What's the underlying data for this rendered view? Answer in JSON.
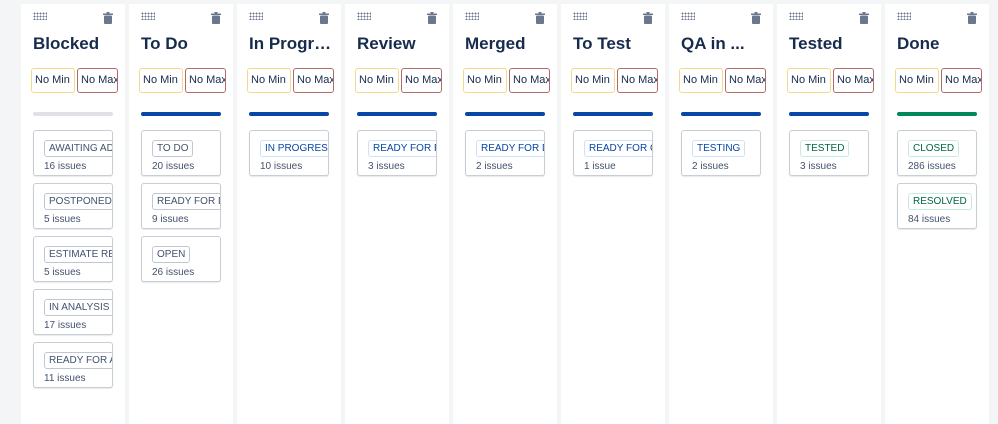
{
  "colors": {
    "gray_bar": "#dfe1e6",
    "blue_bar": "#0747a6",
    "green_bar": "#00875a"
  },
  "columns": [
    {
      "name": "Blocked",
      "min_placeholder": "No Min",
      "max_placeholder": "No Max",
      "bar": "gray",
      "statuses": [
        {
          "label": "AWAITING ADD",
          "category": "gray",
          "count": "16 issues"
        },
        {
          "label": "POSTPONED",
          "category": "gray",
          "count": "5 issues"
        },
        {
          "label": "ESTIMATE REQU",
          "category": "gray",
          "count": "5 issues"
        },
        {
          "label": "IN ANALYSIS",
          "category": "gray",
          "count": "17 issues"
        },
        {
          "label": "READY FOR AN",
          "category": "gray",
          "count": "11 issues"
        }
      ]
    },
    {
      "name": "To Do",
      "min_placeholder": "No Min",
      "max_placeholder": "No Max",
      "bar": "blue",
      "statuses": [
        {
          "label": "TO DO",
          "category": "gray",
          "count": "20 issues"
        },
        {
          "label": "READY FOR DEV",
          "category": "gray",
          "count": "9 issues"
        },
        {
          "label": "OPEN",
          "category": "gray",
          "count": "26 issues"
        }
      ]
    },
    {
      "name": "In Progress",
      "min_placeholder": "No Min",
      "max_placeholder": "No Max",
      "bar": "blue",
      "statuses": [
        {
          "label": "IN PROGRESS",
          "category": "blue",
          "count": "10 issues"
        }
      ]
    },
    {
      "name": "Review",
      "min_placeholder": "No Min",
      "max_placeholder": "No Max",
      "bar": "blue",
      "statuses": [
        {
          "label": "READY FOR REV",
          "category": "blue",
          "count": "3 issues"
        }
      ]
    },
    {
      "name": "Merged",
      "min_placeholder": "No Min",
      "max_placeholder": "No Max",
      "bar": "blue",
      "statuses": [
        {
          "label": "READY FOR DE",
          "category": "blue",
          "count": "2 issues"
        }
      ]
    },
    {
      "name": "To Test",
      "min_placeholder": "No Min",
      "max_placeholder": "No Max",
      "bar": "blue",
      "statuses": [
        {
          "label": "READY FOR QA",
          "category": "blue",
          "count": "1 issue"
        }
      ]
    },
    {
      "name": "QA in ...",
      "min_placeholder": "No Min",
      "max_placeholder": "No Max",
      "bar": "blue",
      "statuses": [
        {
          "label": "TESTING",
          "category": "blue",
          "count": "2 issues"
        }
      ]
    },
    {
      "name": "Tested",
      "min_placeholder": "No Min",
      "max_placeholder": "No Max",
      "bar": "blue",
      "statuses": [
        {
          "label": "TESTED",
          "category": "green",
          "count": "3 issues"
        }
      ]
    },
    {
      "name": "Done",
      "min_placeholder": "No Min",
      "max_placeholder": "No Max",
      "bar": "green",
      "statuses": [
        {
          "label": "CLOSED",
          "category": "green",
          "count": "286 issues"
        },
        {
          "label": "RESOLVED",
          "category": "green",
          "count": "84 issues"
        }
      ]
    }
  ]
}
